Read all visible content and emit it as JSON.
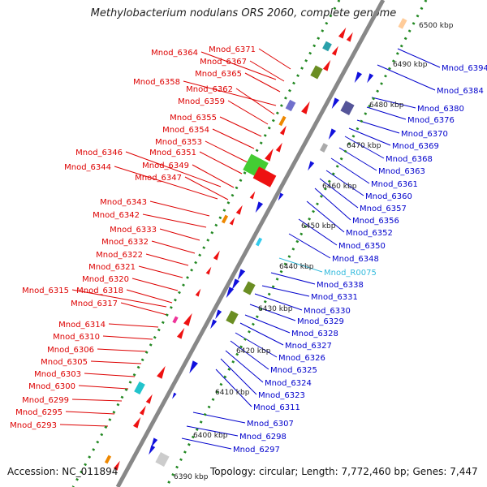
{
  "title": "Methylobacterium nodulans ORS 2060, complete genome",
  "footer": {
    "accession": "Accession: NC_011894",
    "topology": "Topology: circular; Length: 7,772,460 bp; Genes: 7,447"
  },
  "colors": {
    "left_labels": "#dd0000",
    "right_labels": "#0000cc",
    "rna_label": "#33bbdd",
    "backbone": "#888888",
    "ruler_dots": "#228822",
    "red_genes": "#ee1111",
    "blue_genes": "#1111dd"
  },
  "scale_ticks": [
    "6390 kbp",
    "6400 kbp",
    "6410 kbp",
    "6420 kbp",
    "6430 kbp",
    "6440 kbp",
    "6450 kbp",
    "6460 kbp",
    "6470 kbp",
    "6480 kbp",
    "6490 kbp",
    "6500 kbp"
  ],
  "left_labels": [
    "Mnod_6364",
    "Mnod_6371",
    "Mnod_6367",
    "Mnod_6365",
    "Mnod_6358",
    "Mnod_6362",
    "Mnod_6359",
    "Mnod_6355",
    "Mnod_6354",
    "Mnod_6353",
    "Mnod_6346",
    "Mnod_6351",
    "Mnod_6344",
    "Mnod_6349",
    "Mnod_6347",
    "Mnod_6343",
    "Mnod_6342",
    "Mnod_6333",
    "Mnod_6332",
    "Mnod_6322",
    "Mnod_6321",
    "Mnod_6320",
    "Mnod_6315",
    "Mnod_6318",
    "Mnod_6317",
    "Mnod_6314",
    "Mnod_6310",
    "Mnod_6306",
    "Mnod_6305",
    "Mnod_6303",
    "Mnod_6300",
    "Mnod_6299",
    "Mnod_6295",
    "Mnod_6293"
  ],
  "right_labels": [
    "Mnod_6394",
    "Mnod_6384",
    "Mnod_6380",
    "Mnod_6376",
    "Mnod_6370",
    "Mnod_6369",
    "Mnod_6368",
    "Mnod_6363",
    "Mnod_6361",
    "Mnod_6360",
    "Mnod_6357",
    "Mnod_6356",
    "Mnod_6352",
    "Mnod_6350",
    "Mnod_6348",
    "Mnod_R0075",
    "Mnod_6338",
    "Mnod_6331",
    "Mnod_6330",
    "Mnod_6329",
    "Mnod_6328",
    "Mnod_6327",
    "Mnod_6326",
    "Mnod_6325",
    "Mnod_6324",
    "Mnod_6323",
    "Mnod_6311",
    "Mnod_6307",
    "Mnod_6298",
    "Mnod_6297"
  ]
}
